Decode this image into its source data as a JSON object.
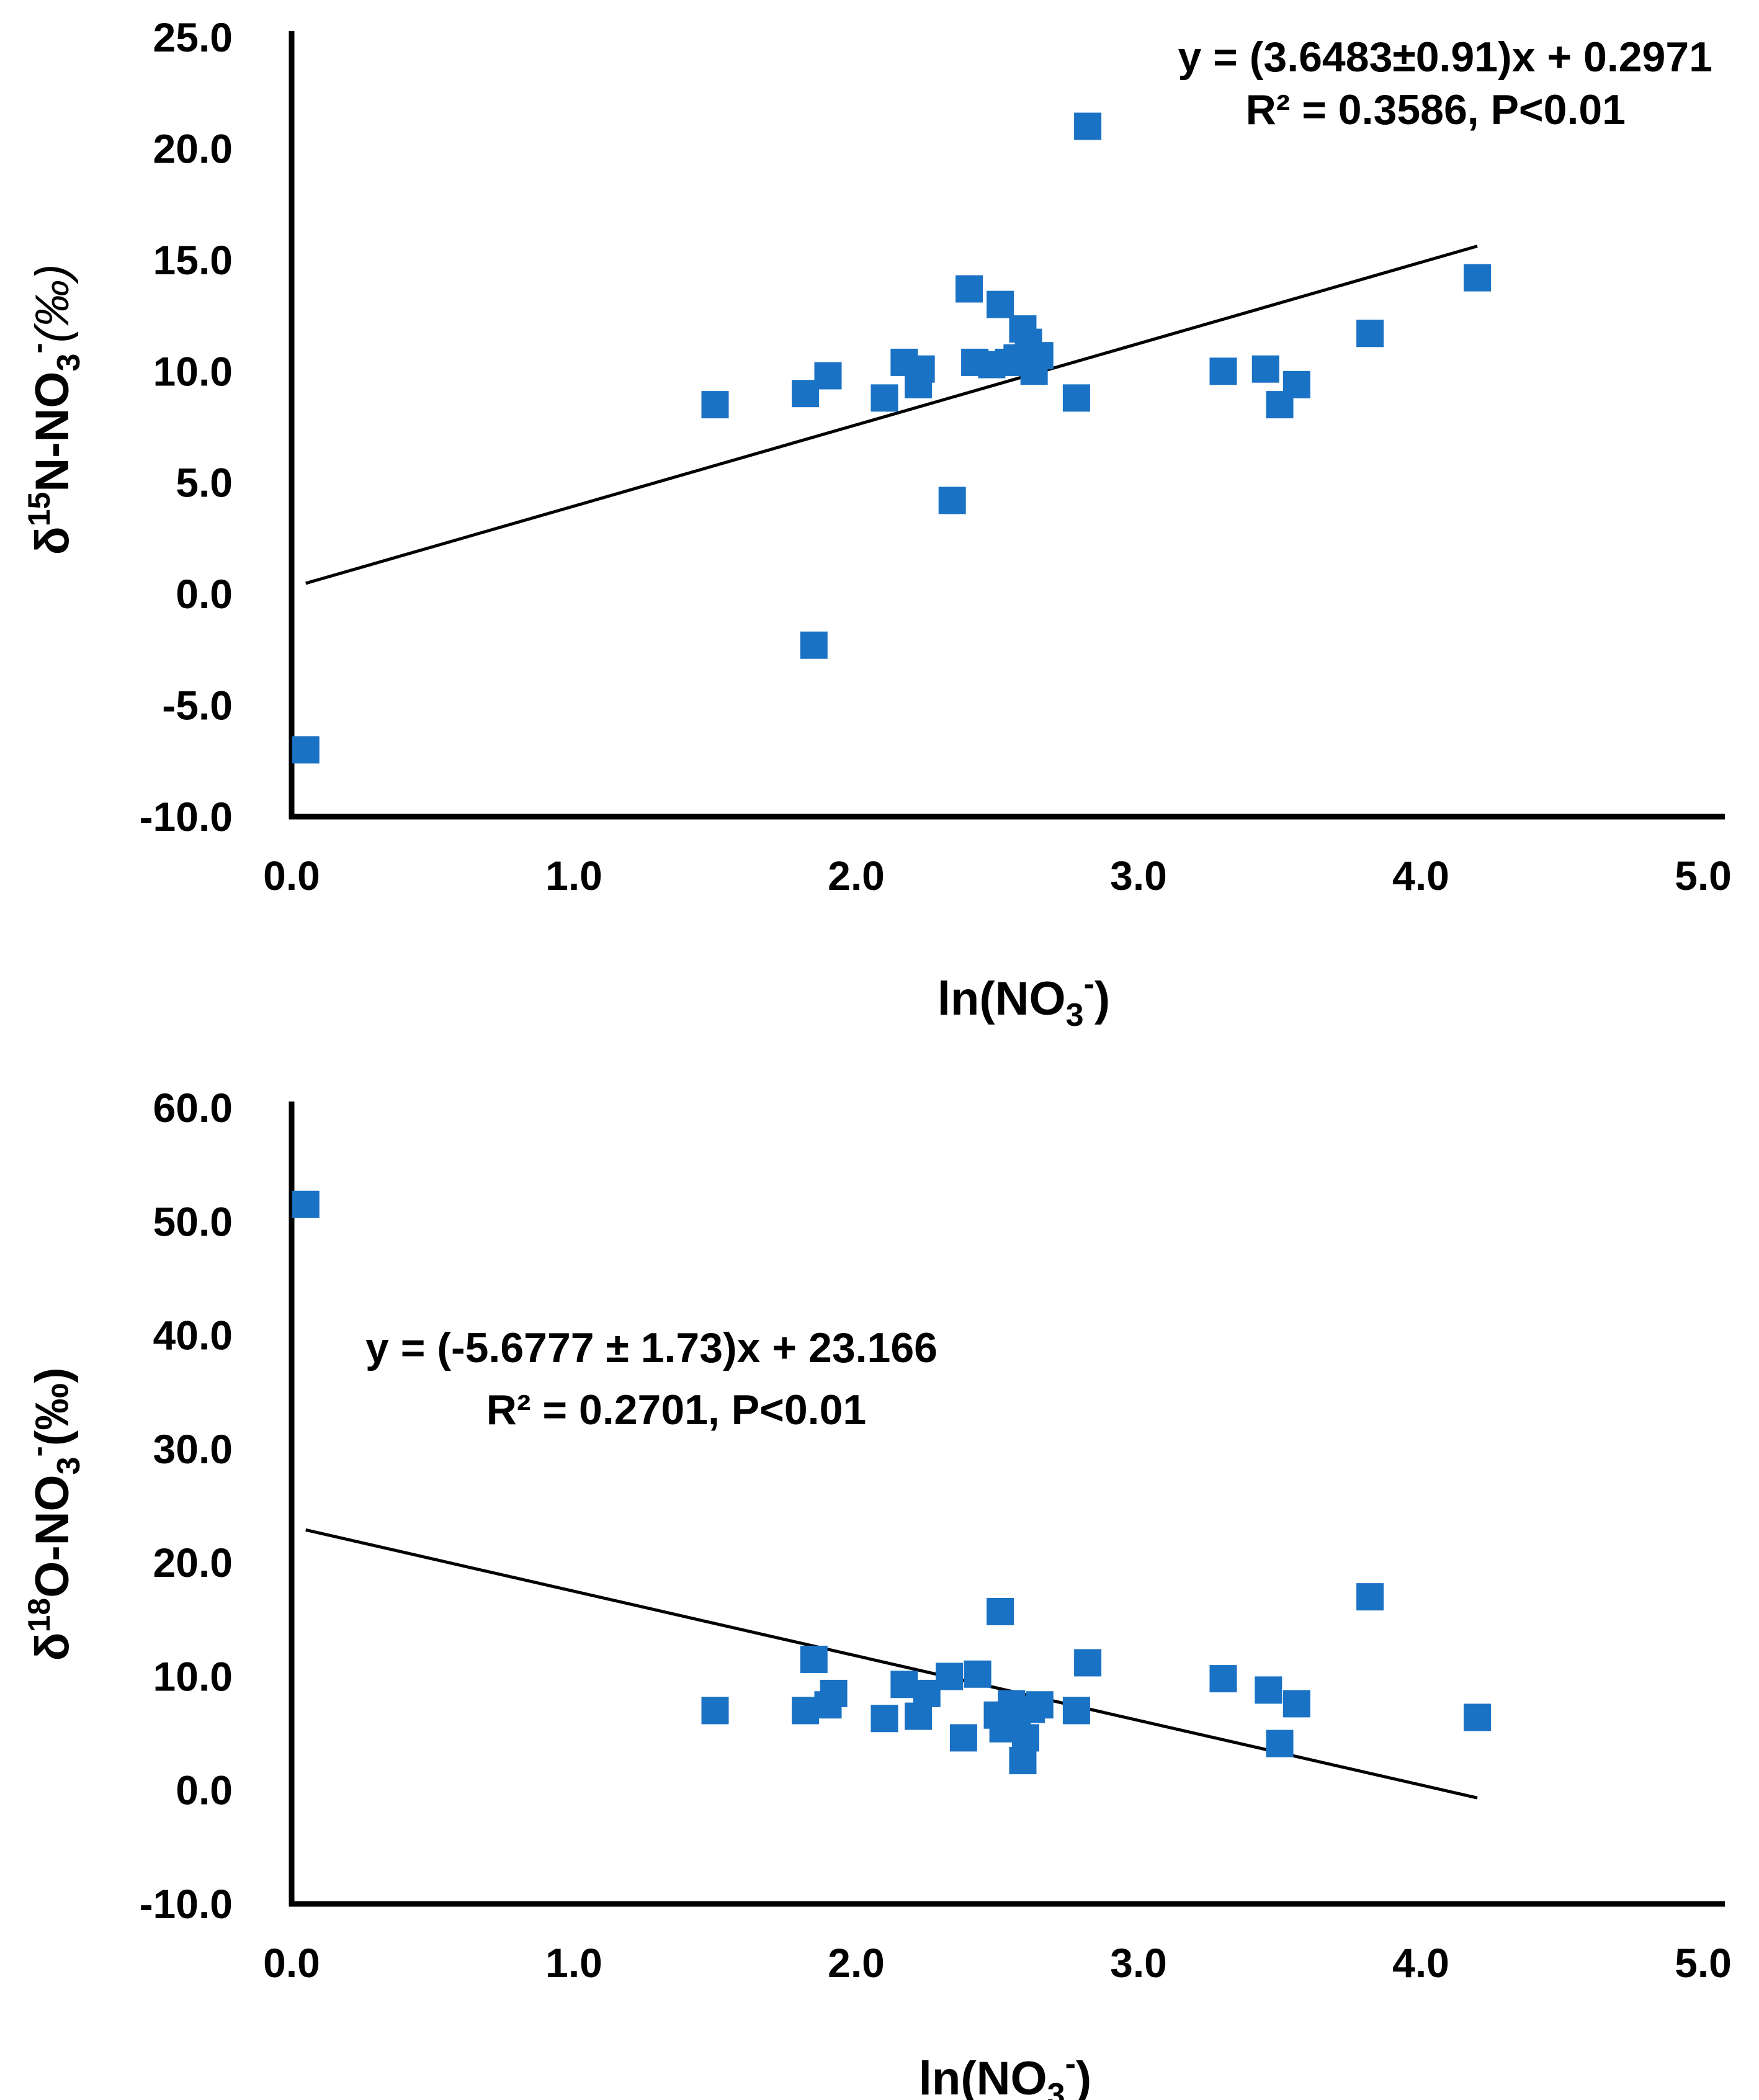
{
  "colors": {
    "marker": "#1a72c4",
    "axis": "#000000",
    "fit": "#000000"
  },
  "chart_data": [
    {
      "type": "scatter",
      "title": "",
      "xlabel_main": "ln(NO",
      "xlabel_sub": "3",
      "xlabel_sup": "-",
      "xlabel_end": ")",
      "ylabel_pre": "δ",
      "ylabel_sup1": "15",
      "ylabel_mid": "N-NO",
      "ylabel_sub": "3",
      "ylabel_sup2": "-",
      "ylabel_end": "(‰)",
      "xlim": [
        0,
        5
      ],
      "ylim": [
        -10,
        25
      ],
      "xticks": [
        "0.0",
        "1.0",
        "2.0",
        "3.0",
        "4.0",
        "5.0"
      ],
      "yticks": [
        "-10.0",
        "-5.0",
        "0.0",
        "5.0",
        "10.0",
        "15.0",
        "20.0",
        "25.0"
      ],
      "xtick_values": [
        0,
        1,
        2,
        3,
        4,
        5
      ],
      "ytick_values": [
        -10,
        -5,
        0,
        5,
        10,
        15,
        20,
        25
      ],
      "equation": "y = (3.6483±0.91)x + 0.2971",
      "r2_label": "R² = 0.3586, P<0.01",
      "fit": {
        "slope": 3.6483,
        "intercept": 0.2971,
        "x_range": [
          0.05,
          4.2
        ]
      },
      "points": [
        {
          "x": 0.05,
          "y": -7.0
        },
        {
          "x": 1.5,
          "y": 8.5
        },
        {
          "x": 1.82,
          "y": 9.0
        },
        {
          "x": 1.85,
          "y": -2.3
        },
        {
          "x": 1.9,
          "y": 9.8
        },
        {
          "x": 2.1,
          "y": 8.8
        },
        {
          "x": 2.17,
          "y": 10.4
        },
        {
          "x": 2.22,
          "y": 9.4
        },
        {
          "x": 2.23,
          "y": 10.1
        },
        {
          "x": 2.34,
          "y": 4.2
        },
        {
          "x": 2.4,
          "y": 13.7
        },
        {
          "x": 2.42,
          "y": 10.4
        },
        {
          "x": 2.48,
          "y": 10.3
        },
        {
          "x": 2.51,
          "y": 13.0
        },
        {
          "x": 2.54,
          "y": 10.4
        },
        {
          "x": 2.57,
          "y": 10.6
        },
        {
          "x": 2.59,
          "y": 11.9
        },
        {
          "x": 2.61,
          "y": 11.3
        },
        {
          "x": 2.63,
          "y": 10.0
        },
        {
          "x": 2.65,
          "y": 10.7
        },
        {
          "x": 2.78,
          "y": 8.8
        },
        {
          "x": 2.82,
          "y": 21.0
        },
        {
          "x": 3.3,
          "y": 10.0
        },
        {
          "x": 3.45,
          "y": 10.1
        },
        {
          "x": 3.5,
          "y": 8.5
        },
        {
          "x": 3.56,
          "y": 9.4
        },
        {
          "x": 3.82,
          "y": 11.7
        },
        {
          "x": 4.2,
          "y": 14.2
        }
      ]
    },
    {
      "type": "scatter",
      "title": "",
      "xlabel_main": "ln(NO",
      "xlabel_sub": "3",
      "xlabel_sup": "-",
      "xlabel_end": ")",
      "ylabel_pre": "δ",
      "ylabel_sup1": "18",
      "ylabel_mid": "O-NO",
      "ylabel_sub": "3",
      "ylabel_sup2": "-",
      "ylabel_end": "(‰)",
      "xlim": [
        0,
        5
      ],
      "ylim": [
        -10,
        60
      ],
      "xticks": [
        "0.0",
        "1.0",
        "2.0",
        "3.0",
        "4.0",
        "5.0"
      ],
      "yticks": [
        "-10.0",
        "0.0",
        "10.0",
        "20.0",
        "30.0",
        "40.0",
        "50.0",
        "60.0"
      ],
      "xtick_values": [
        0,
        1,
        2,
        3,
        4,
        5
      ],
      "ytick_values": [
        -10,
        0,
        10,
        20,
        30,
        40,
        50,
        60
      ],
      "equation": "y = (-5.6777 ± 1.73)x + 23.166",
      "r2_label": "R² = 0.2701, P<0.01",
      "fit": {
        "slope": -5.6777,
        "intercept": 23.166,
        "x_range": [
          0.05,
          4.2
        ]
      },
      "points": [
        {
          "x": 0.05,
          "y": 51.5
        },
        {
          "x": 1.5,
          "y": 7.0
        },
        {
          "x": 1.82,
          "y": 7.0
        },
        {
          "x": 1.85,
          "y": 11.5
        },
        {
          "x": 1.9,
          "y": 7.5
        },
        {
          "x": 1.92,
          "y": 8.5
        },
        {
          "x": 2.1,
          "y": 6.3
        },
        {
          "x": 2.17,
          "y": 9.3
        },
        {
          "x": 2.22,
          "y": 6.5
        },
        {
          "x": 2.25,
          "y": 8.5
        },
        {
          "x": 2.33,
          "y": 10.0
        },
        {
          "x": 2.38,
          "y": 4.6
        },
        {
          "x": 2.43,
          "y": 10.2
        },
        {
          "x": 2.5,
          "y": 6.6
        },
        {
          "x": 2.51,
          "y": 15.7
        },
        {
          "x": 2.52,
          "y": 5.4
        },
        {
          "x": 2.55,
          "y": 7.6
        },
        {
          "x": 2.57,
          "y": 5.8
        },
        {
          "x": 2.59,
          "y": 2.6
        },
        {
          "x": 2.6,
          "y": 4.6
        },
        {
          "x": 2.62,
          "y": 7.1
        },
        {
          "x": 2.65,
          "y": 7.5
        },
        {
          "x": 2.78,
          "y": 7.0
        },
        {
          "x": 2.82,
          "y": 11.2
        },
        {
          "x": 3.3,
          "y": 9.8
        },
        {
          "x": 3.46,
          "y": 8.8
        },
        {
          "x": 3.5,
          "y": 4.1
        },
        {
          "x": 3.56,
          "y": 7.6
        },
        {
          "x": 3.82,
          "y": 17.0
        },
        {
          "x": 4.2,
          "y": 6.4
        }
      ]
    }
  ]
}
